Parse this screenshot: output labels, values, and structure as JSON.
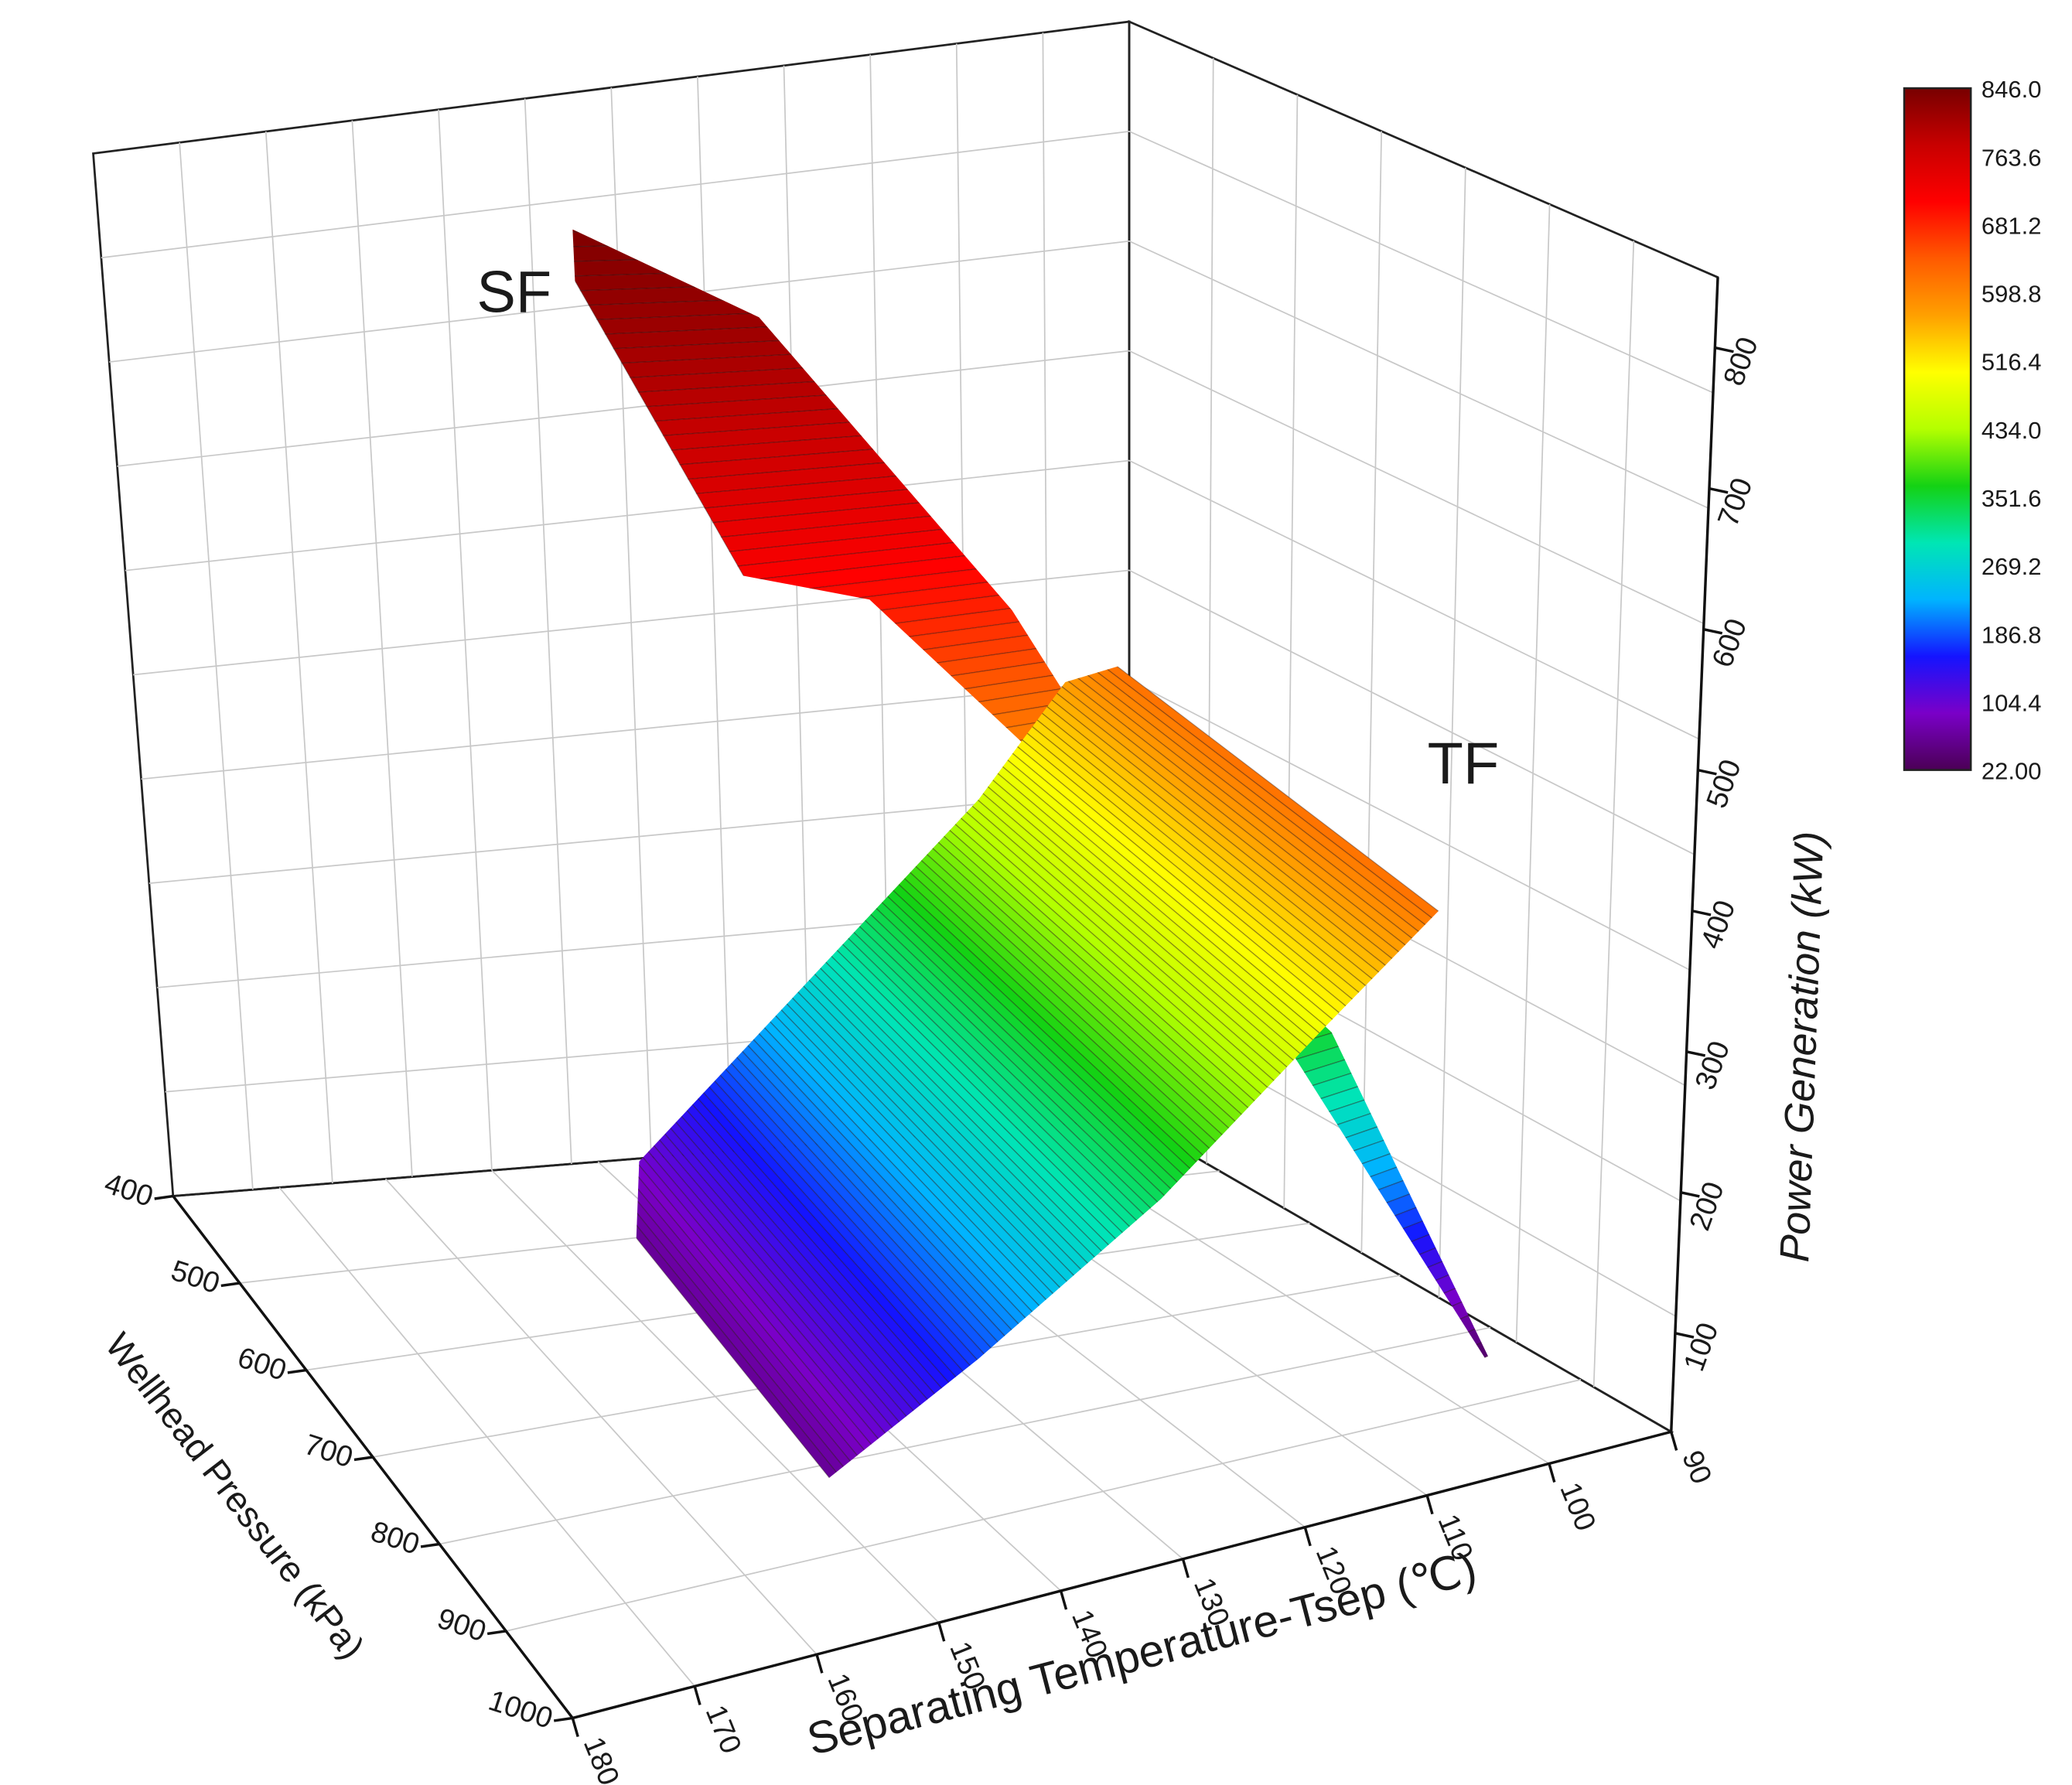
{
  "chart_data": {
    "type": "surface3d",
    "title": "",
    "x_axis": {
      "label": "Separating Temperature-Tsep (℃)",
      "ticks": [
        "90",
        "100",
        "110",
        "120",
        "130",
        "140",
        "150",
        "160",
        "170",
        "180"
      ],
      "range": [
        90,
        180
      ]
    },
    "y_axis": {
      "label": "Wellhead Pressure (kPa)",
      "ticks": [
        "400",
        "500",
        "600",
        "700",
        "800",
        "900",
        "1000"
      ],
      "range": [
        400,
        1000
      ]
    },
    "z_axis": {
      "label": "Power Generation (kW)",
      "ticks": [
        "100",
        "200",
        "300",
        "400",
        "500",
        "600",
        "700",
        "800"
      ],
      "range": [
        30,
        850
      ]
    },
    "colorbar": {
      "ticks": [
        "846.0",
        "763.6",
        "681.2",
        "598.8",
        "516.4",
        "434.0",
        "351.6",
        "269.2",
        "186.8",
        "104.4",
        "22.00"
      ],
      "min": 22.0,
      "max": 846.0,
      "colors": [
        "#4b0055",
        "#7a00c8",
        "#1414ff",
        "#00b4ff",
        "#00e6b4",
        "#14d214",
        "#b4ff00",
        "#ffff00",
        "#ffa000",
        "#ff5a00",
        "#ff0000",
        "#c80000",
        "#780000"
      ]
    },
    "grid": true,
    "series": [
      {
        "name": "SF",
        "description_points": [
          {
            "tsep": 180,
            "pressure": 400,
            "power": 846
          },
          {
            "tsep": 180,
            "pressure": 1000,
            "power": 240
          },
          {
            "tsep": 90,
            "pressure": 400,
            "power": 30
          }
        ]
      },
      {
        "name": "TF",
        "description_points": [
          {
            "tsep": 90,
            "pressure": 400,
            "power": 620
          },
          {
            "tsep": 180,
            "pressure": 1000,
            "power": 60
          },
          {
            "tsep": 180,
            "pressure": 400,
            "power": 220
          }
        ]
      }
    ]
  }
}
